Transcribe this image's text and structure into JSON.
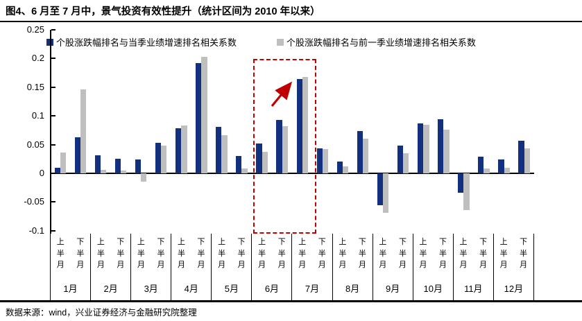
{
  "figure": {
    "title": "图4、6 月至 7 月中，景气投资有效性提升（统计区间为 2010 年以来）",
    "source": "数据来源：wind，兴业证券经济与金融研究院整理"
  },
  "chart_data": {
    "type": "bar",
    "title": "图4、6 月至 7 月中，景气投资有效性提升（统计区间为 2010 年以来）",
    "months": [
      "1月",
      "2月",
      "3月",
      "4月",
      "5月",
      "6月",
      "7月",
      "8月",
      "9月",
      "10月",
      "11月",
      "12月"
    ],
    "half_labels": [
      "上半月",
      "下半月"
    ],
    "categories": [
      "1月上半月",
      "1月下半月",
      "2月上半月",
      "2月下半月",
      "3月上半月",
      "3月下半月",
      "4月上半月",
      "4月下半月",
      "5月上半月",
      "5月下半月",
      "6月上半月",
      "6月下半月",
      "7月上半月",
      "7月下半月",
      "8月上半月",
      "8月下半月",
      "9月上半月",
      "9月下半月",
      "10月上半月",
      "10月下半月",
      "11月上半月",
      "11月下半月",
      "12月上半月",
      "12月下半月"
    ],
    "series": [
      {
        "name": "个股涨跌幅排名与当季业绩增速排名相关系数",
        "color": "#12307e",
        "values": [
          0.01,
          0.063,
          0.031,
          0.025,
          0.024,
          0.053,
          0.079,
          0.192,
          0.081,
          0.03,
          0.052,
          0.093,
          0.164,
          0.044,
          0.02,
          0.074,
          -0.055,
          0.048,
          0.087,
          0.094,
          -0.034,
          0.029,
          0.024,
          0.057
        ]
      },
      {
        "name": "个股涨跌幅排名与前一季业绩增速排名相关系数",
        "color": "#bfbfbf",
        "values": [
          0.036,
          0.146,
          0.006,
          0.005,
          -0.014,
          0.048,
          0.083,
          0.203,
          0.066,
          0.009,
          0.037,
          0.082,
          0.168,
          0.042,
          0.012,
          0.06,
          -0.069,
          0.035,
          0.084,
          0.076,
          -0.064,
          0.009,
          0.01,
          0.044
        ]
      }
    ],
    "ylim": [
      -0.1,
      0.25
    ],
    "ytick_labels": [
      "0.25",
      "0.2",
      "0.15",
      "0.1",
      "0.05",
      "0",
      "-0.05",
      "-0.1"
    ],
    "grid": false,
    "legend_position": "top",
    "highlight": {
      "label": "6月上半月至7月上半月",
      "start_category_index": 10,
      "end_category_index": 12,
      "box_color": "#c00000",
      "arrow": "up-right"
    }
  }
}
